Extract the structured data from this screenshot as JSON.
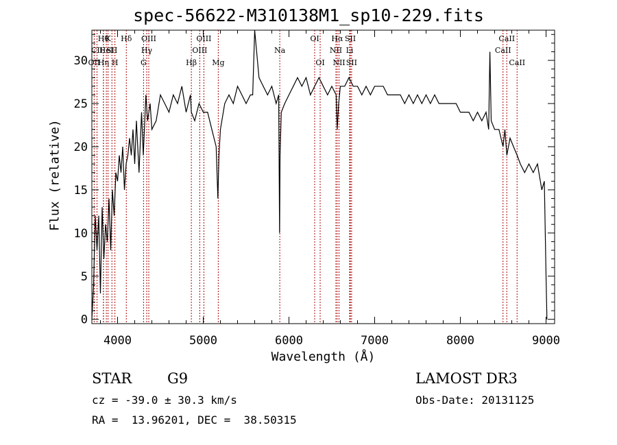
{
  "chart_data": {
    "type": "line",
    "title": "spec-56622-M310138M1_sp10-229.fits",
    "xlabel": "Wavelength (Å)",
    "ylabel": "Flux (relative)",
    "xlim": [
      3700,
      9100
    ],
    "ylim": [
      -0.5,
      33.5
    ],
    "xticks": [
      4000,
      5000,
      6000,
      7000,
      8000,
      9000
    ],
    "yticks": [
      0,
      5,
      10,
      15,
      20,
      25,
      30
    ],
    "grid": false,
    "line_color": "#000000",
    "marker_color": "#aa0000",
    "series": [
      {
        "x": [
          3700,
          3720,
          3740,
          3760,
          3780,
          3800,
          3820,
          3840,
          3860,
          3880,
          3900,
          3920,
          3940,
          3960,
          3980,
          4000,
          4020,
          4040,
          4060,
          4080,
          4100,
          4120,
          4140,
          4160,
          4180,
          4200,
          4220,
          4250,
          4280,
          4300,
          4330,
          4350,
          4380,
          4400,
          4450,
          4500,
          4550,
          4600,
          4650,
          4700,
          4750,
          4800,
          4850,
          4861,
          4900,
          4950,
          5000,
          5050,
          5100,
          5150,
          5170,
          5183,
          5200,
          5250,
          5300,
          5350,
          5400,
          5450,
          5500,
          5550,
          5577,
          5600,
          5650,
          5700,
          5750,
          5800,
          5850,
          5880,
          5890,
          5896,
          5910,
          5950,
          6000,
          6050,
          6100,
          6150,
          6200,
          6250,
          6300,
          6350,
          6400,
          6450,
          6500,
          6550,
          6563,
          6580,
          6600,
          6650,
          6700,
          6750,
          6800,
          6850,
          6900,
          6950,
          7000,
          7050,
          7100,
          7150,
          7200,
          7250,
          7300,
          7350,
          7400,
          7450,
          7500,
          7550,
          7600,
          7650,
          7700,
          7750,
          7800,
          7850,
          7900,
          7950,
          8000,
          8050,
          8100,
          8150,
          8200,
          8250,
          8300,
          8330,
          8345,
          8360,
          8400,
          8450,
          8498,
          8520,
          8542,
          8580,
          8620,
          8662,
          8700,
          8750,
          8800,
          8850,
          8900,
          8950,
          8980,
          9000,
          9010
        ],
        "y": [
          0,
          4,
          12,
          8,
          12,
          3,
          13,
          7,
          11,
          9,
          14,
          8,
          15,
          12,
          17,
          16,
          19,
          17,
          20,
          15,
          18,
          19,
          21,
          19,
          22,
          18,
          23,
          17,
          24,
          19,
          26,
          23,
          25,
          22,
          23,
          26,
          25,
          24,
          26,
          25,
          27,
          24,
          26,
          24,
          23,
          25,
          24,
          24,
          22,
          20,
          14,
          19,
          22,
          25,
          26,
          25,
          27,
          26,
          25,
          26,
          26,
          35,
          28,
          27,
          26,
          27,
          25,
          26,
          10,
          19,
          24,
          25,
          26,
          27,
          28,
          27,
          28,
          26,
          27,
          28,
          27,
          26,
          27,
          26,
          22,
          25,
          27,
          27,
          28,
          27,
          27,
          26,
          27,
          26,
          27,
          27,
          27,
          26,
          26,
          26,
          26,
          25,
          26,
          25,
          26,
          25,
          26,
          25,
          26,
          25,
          25,
          25,
          25,
          25,
          24,
          24,
          24,
          23,
          24,
          23,
          24,
          22,
          31,
          23,
          22,
          22,
          20,
          22,
          19,
          21,
          20,
          19,
          18,
          17,
          18,
          17,
          18,
          15,
          16,
          5,
          0
        ]
      }
    ],
    "line_markers": [
      {
        "x": 3727,
        "row": 2,
        "label": "OII"
      },
      {
        "x": 3760,
        "row": 1,
        "label": "CII"
      },
      {
        "x": 3835,
        "row": 0,
        "label": "Hθ"
      },
      {
        "x": 3835,
        "row": 2,
        "label": "Hη"
      },
      {
        "x": 3869,
        "row": 1,
        "label": "HeI"
      },
      {
        "x": 3889,
        "row": 0,
        "label": "K"
      },
      {
        "x": 3934,
        "row": 1,
        "label": "SII"
      },
      {
        "x": 3969,
        "row": 2,
        "label": "H"
      },
      {
        "x": 4102,
        "row": 0,
        "label": "Hδ"
      },
      {
        "x": 4303,
        "row": 2,
        "label": "G"
      },
      {
        "x": 4340,
        "row": 1,
        "label": "Hγ"
      },
      {
        "x": 4364,
        "row": 0,
        "label": "OIII"
      },
      {
        "x": 4861,
        "row": 2,
        "label": "Hβ"
      },
      {
        "x": 4959,
        "row": 1,
        "label": "OIII"
      },
      {
        "x": 5007,
        "row": 0,
        "label": "OIII"
      },
      {
        "x": 5175,
        "row": 2,
        "label": "Mg"
      },
      {
        "x": 5893,
        "row": 1,
        "label": "Na"
      },
      {
        "x": 6300,
        "row": 0,
        "label": "OI"
      },
      {
        "x": 6364,
        "row": 2,
        "label": "OI"
      },
      {
        "x": 6548,
        "row": 1,
        "label": "NII"
      },
      {
        "x": 6563,
        "row": 0,
        "label": "Hα"
      },
      {
        "x": 6584,
        "row": 2,
        "label": "NII"
      },
      {
        "x": 6708,
        "row": 1,
        "label": "Li"
      },
      {
        "x": 6716,
        "row": 0,
        "label": "SII"
      },
      {
        "x": 6731,
        "row": 2,
        "label": "SII"
      },
      {
        "x": 8498,
        "row": 1,
        "label": "CaII"
      },
      {
        "x": 8542,
        "row": 0,
        "label": "CaII"
      },
      {
        "x": 8662,
        "row": 2,
        "label": "CaII"
      }
    ]
  },
  "info": {
    "class": "STAR",
    "subclass": "G9",
    "survey": "LAMOST DR3",
    "cz": "cz = -39.0 ± 30.3 km/s",
    "obs_date": "Obs-Date: 20131125",
    "coords": "RA =  13.96201, DEC =  38.50315"
  }
}
